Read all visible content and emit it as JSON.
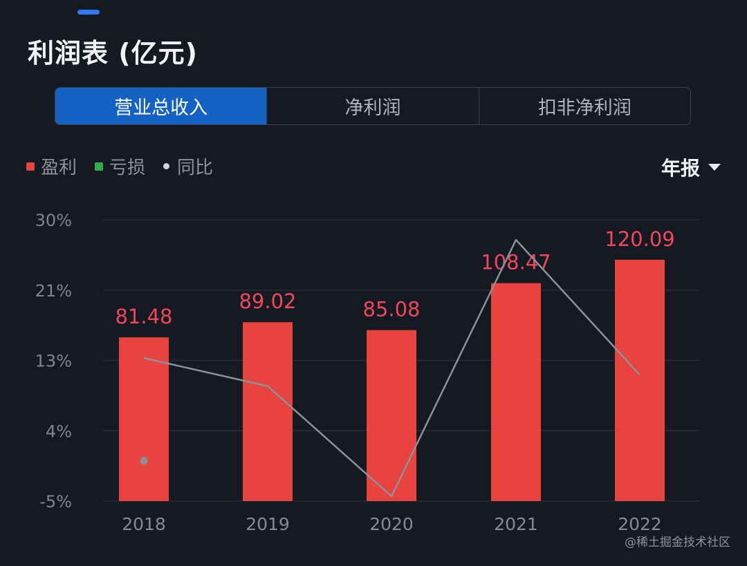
{
  "header": {
    "title": "利润表 (亿元)"
  },
  "tabs": [
    {
      "label": "营业总收入",
      "active": true
    },
    {
      "label": "净利润",
      "active": false
    },
    {
      "label": "扣非净利润",
      "active": false
    }
  ],
  "legend": {
    "profit_label": "盈利",
    "loss_label": "亏损",
    "yoy_label": "同比",
    "profit_color": "#e8433f",
    "loss_color": "#2fae4c",
    "yoy_color": "#d0d4dc"
  },
  "period_selector": {
    "label": "年报"
  },
  "chart_data": {
    "type": "bar",
    "title": "营业总收入",
    "categories": [
      "2018",
      "2019",
      "2020",
      "2021",
      "2022"
    ],
    "series": [
      {
        "name": "盈利",
        "values": [
          81.48,
          89.02,
          85.08,
          108.47,
          120.09
        ],
        "value_labels": [
          "81.48",
          "89.02",
          "85.08",
          "108.47",
          "120.09"
        ]
      },
      {
        "name": "同比",
        "type": "line",
        "axis": "left",
        "unit": "%",
        "values": [
          12.8,
          9.3,
          -4.4,
          27.5,
          10.7
        ]
      }
    ],
    "y_axis": {
      "ticks": [
        "30%",
        "21%",
        "13%",
        "4%",
        "-5%"
      ],
      "tick_values": [
        30,
        21.25,
        12.5,
        3.75,
        -5
      ],
      "range": [
        -5,
        30
      ]
    },
    "annotations": [
      {
        "type": "point",
        "category": "2018",
        "value": 0
      }
    ],
    "bar_color": "#e8433f",
    "label_color": "#f0475a",
    "line_color": "#8c919b",
    "grid": true
  },
  "watermark": "@稀土掘金技术社区"
}
